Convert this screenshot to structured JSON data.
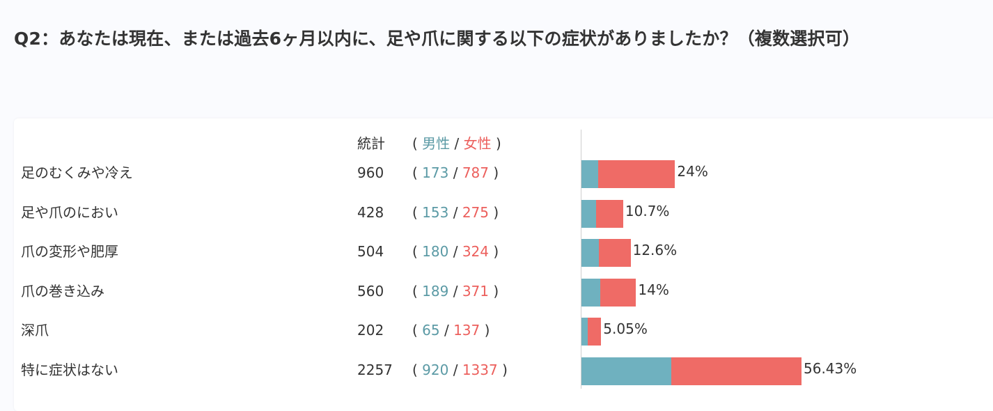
{
  "title": "Q2：あなたは現在、または過去6ヶ月以内に、足や爪に関する以下の症状がありましたか？（複数選択可）",
  "header": {
    "total_label": "統計",
    "open_paren": "(",
    "male_label": "男性",
    "slash": "/",
    "female_label": "女性",
    "close_paren": ")"
  },
  "colors": {
    "male": "#6fb1bf",
    "female": "#ef6b66",
    "male_text": "#5b9aa5",
    "female_text": "#ec5f5c"
  },
  "chart_data": {
    "type": "bar",
    "orientation": "horizontal",
    "stacked": true,
    "categories": [
      "足のむくみや冷え",
      "足や爪のにおい",
      "爪の変形や肥厚",
      "爪の巻き込み",
      "深爪",
      "特に症状はない"
    ],
    "totals": [
      960,
      428,
      504,
      560,
      202,
      2257
    ],
    "series": [
      {
        "name": "男性",
        "values": [
          173,
          153,
          180,
          189,
          65,
          920
        ]
      },
      {
        "name": "女性",
        "values": [
          787,
          275,
          324,
          371,
          137,
          1337
        ]
      }
    ],
    "percent_labels": [
      "24%",
      "10.7%",
      "12.6%",
      "14%",
      "5.05%",
      "56.43%"
    ],
    "percent_values": [
      24,
      10.7,
      12.6,
      14,
      5.05,
      56.43
    ],
    "legend": "none",
    "grid": false
  }
}
